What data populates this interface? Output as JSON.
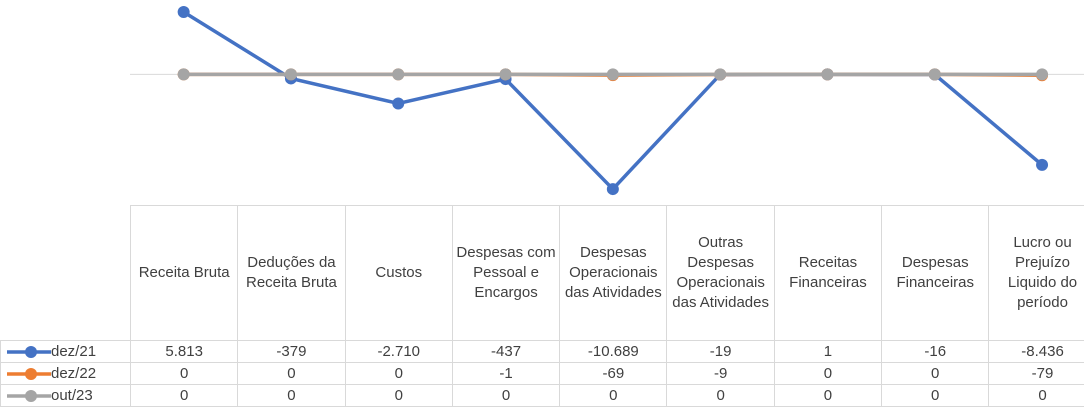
{
  "chart_data": {
    "type": "line",
    "categories": [
      "Receita Bruta",
      "Deduções da Receita Bruta",
      "Custos",
      "Despesas com Pessoal e Encargos",
      "Despesas Operacionais das Atividades",
      "Outras Despesas Operacionais das Atividades",
      "Receitas Financeiras",
      "Despesas Financeiras",
      "Lucro ou Prejuízo Liquido do período"
    ],
    "series": [
      {
        "name": "dez/21",
        "color": "#4472c4",
        "values": [
          5813,
          -379,
          -2710,
          -437,
          -10689,
          -19,
          1,
          -16,
          -8436
        ],
        "value_labels": [
          "5.813",
          "-379",
          "-2.710",
          "-437",
          "-10.689",
          "-19",
          "1",
          "-16",
          "-8.436"
        ]
      },
      {
        "name": "dez/22",
        "color": "#ed7d31",
        "values": [
          0,
          0,
          0,
          -1,
          -69,
          -9,
          0,
          0,
          -79
        ]
      },
      {
        "name": "out/23",
        "color": "#a5a5a5",
        "values": [
          0,
          0,
          0,
          0,
          0,
          0,
          0,
          0,
          0
        ]
      }
    ],
    "ylim": [
      -11000,
      6000
    ],
    "yticks": [
      0
    ],
    "grid": true,
    "tick_labels": false
  }
}
